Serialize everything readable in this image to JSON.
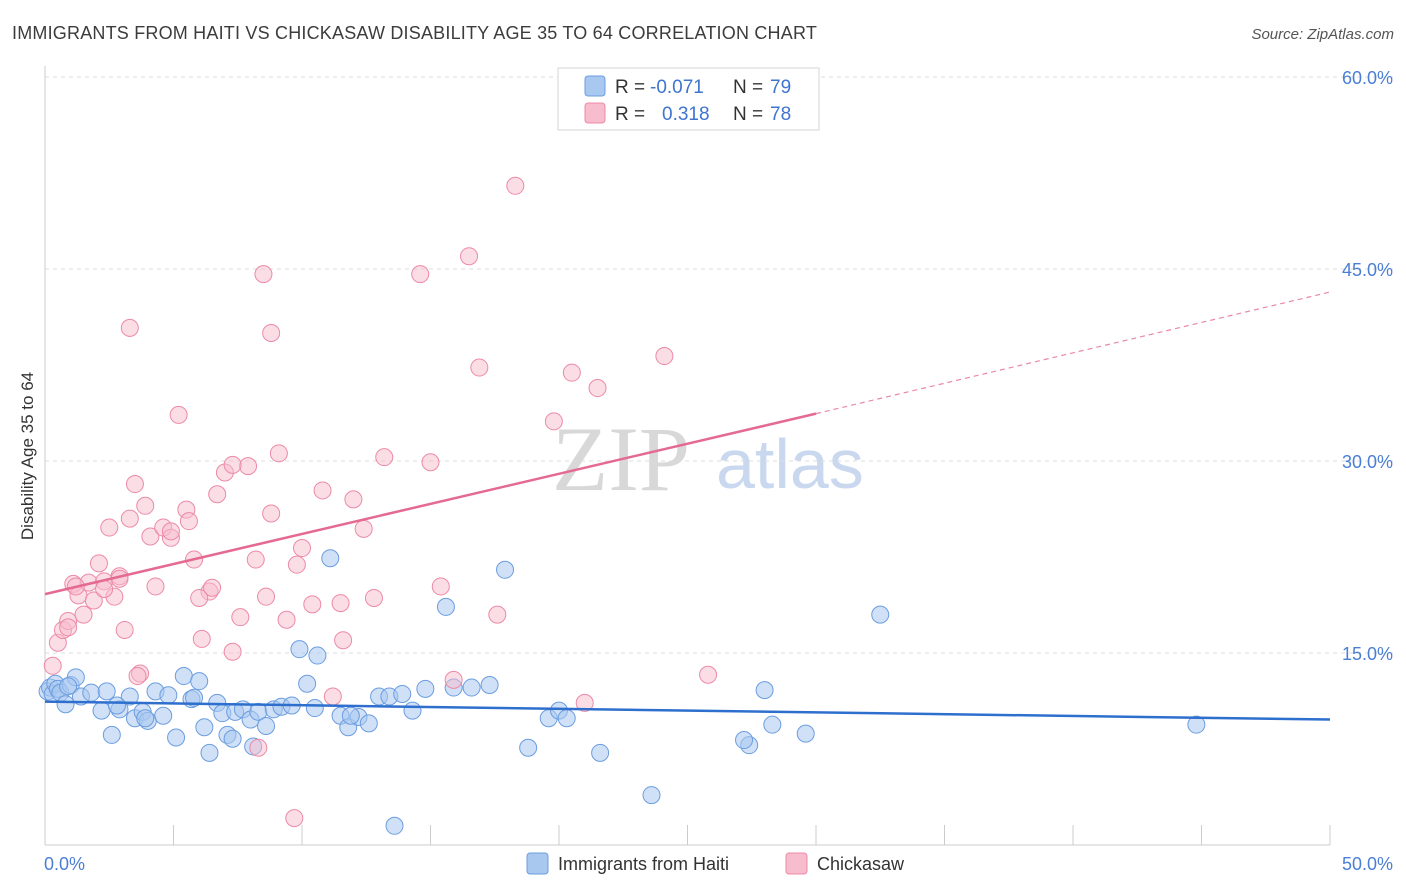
{
  "title": "IMMIGRANTS FROM HAITI VS CHICKASAW DISABILITY AGE 35 TO 64 CORRELATION CHART",
  "source": "Source: ZipAtlas.com",
  "watermark": {
    "zip": "ZIP",
    "atlas": "atlas"
  },
  "colors": {
    "haiti_fill": "#a9c8f0",
    "haiti_stroke": "#6b9de0",
    "haiti_line": "#2e6fce",
    "chickasaw_fill": "#f7bccd",
    "chickasaw_stroke": "#ec8aa7",
    "chickasaw_line": "#e46a92",
    "grid": "#dddddd",
    "tick_text": "#4a7fd4"
  },
  "legend": {
    "rows": [
      {
        "r_label": "R =",
        "r_value": "-0.071",
        "n_label": "N =",
        "n_value": "79"
      },
      {
        "r_label": "R =",
        "r_value": "0.318",
        "n_label": "N =",
        "n_value": "78"
      }
    ]
  },
  "bottom_legend": [
    "Immigrants from Haiti",
    "Chickasaw"
  ],
  "chart_data": {
    "type": "scatter",
    "title": "IMMIGRANTS FROM HAITI VS CHICKASAW DISABILITY AGE 35 TO 64 CORRELATION CHART",
    "xlabel": "",
    "ylabel": "Disability Age 35 to 64",
    "xlim": [
      0,
      50
    ],
    "ylim": [
      0,
      60
    ],
    "x_tick_labels": [
      "0.0%",
      "50.0%"
    ],
    "y_ticks": [
      15,
      30,
      45,
      60
    ],
    "y_tick_labels": [
      "15.0%",
      "30.0%",
      "45.0%",
      "60.0%"
    ],
    "grid": true,
    "legend_position": "top-center",
    "series": [
      {
        "name": "Immigrants from Haiti",
        "r": -0.071,
        "n": 79,
        "trend": {
          "x0": 0,
          "y0": 11.2,
          "x1": 50,
          "y1": 9.8
        },
        "points": [
          [
            0.1,
            12.0
          ],
          [
            0.2,
            12.3
          ],
          [
            0.3,
            11.8
          ],
          [
            0.4,
            12.6
          ],
          [
            0.5,
            12.2
          ],
          [
            0.6,
            11.9
          ],
          [
            0.8,
            11.0
          ],
          [
            1.0,
            12.5
          ],
          [
            1.2,
            13.1
          ],
          [
            1.4,
            11.6
          ],
          [
            1.8,
            11.9
          ],
          [
            2.2,
            10.5
          ],
          [
            2.4,
            12.0
          ],
          [
            2.6,
            8.6
          ],
          [
            2.9,
            10.6
          ],
          [
            3.3,
            11.6
          ],
          [
            3.5,
            9.9
          ],
          [
            3.8,
            10.4
          ],
          [
            4.0,
            9.7
          ],
          [
            4.3,
            12.0
          ],
          [
            4.6,
            10.1
          ],
          [
            4.8,
            11.7
          ],
          [
            5.1,
            8.4
          ],
          [
            5.4,
            13.2
          ],
          [
            5.7,
            11.4
          ],
          [
            6.0,
            12.8
          ],
          [
            6.2,
            9.2
          ],
          [
            6.4,
            7.2
          ],
          [
            6.7,
            11.1
          ],
          [
            6.9,
            10.3
          ],
          [
            7.1,
            8.6
          ],
          [
            7.4,
            10.4
          ],
          [
            7.7,
            10.6
          ],
          [
            8.0,
            9.8
          ],
          [
            8.3,
            10.4
          ],
          [
            8.6,
            9.3
          ],
          [
            8.9,
            10.6
          ],
          [
            9.2,
            10.8
          ],
          [
            9.6,
            10.9
          ],
          [
            9.9,
            15.3
          ],
          [
            10.2,
            12.6
          ],
          [
            10.6,
            14.8
          ],
          [
            11.1,
            22.4
          ],
          [
            11.5,
            10.1
          ],
          [
            11.8,
            9.2
          ],
          [
            12.2,
            10.0
          ],
          [
            12.6,
            9.5
          ],
          [
            13.0,
            11.6
          ],
          [
            13.4,
            11.6
          ],
          [
            13.9,
            11.8
          ],
          [
            14.3,
            10.5
          ],
          [
            14.8,
            12.2
          ],
          [
            15.6,
            18.6
          ],
          [
            15.9,
            12.3
          ],
          [
            16.6,
            12.3
          ],
          [
            17.3,
            12.5
          ],
          [
            17.9,
            21.5
          ],
          [
            18.8,
            7.6
          ],
          [
            19.6,
            9.9
          ],
          [
            20.0,
            10.5
          ],
          [
            20.3,
            9.9
          ],
          [
            21.6,
            7.2
          ],
          [
            23.6,
            3.9
          ],
          [
            27.4,
            7.8
          ],
          [
            27.2,
            8.2
          ],
          [
            28.3,
            9.4
          ],
          [
            28.0,
            12.1
          ],
          [
            29.6,
            8.7
          ],
          [
            32.5,
            18.0
          ],
          [
            44.8,
            9.4
          ],
          [
            13.6,
            1.5
          ],
          [
            11.9,
            10.1
          ],
          [
            5.8,
            11.5
          ],
          [
            3.9,
            9.9
          ],
          [
            0.9,
            12.4
          ],
          [
            2.8,
            10.9
          ],
          [
            10.5,
            10.7
          ],
          [
            8.1,
            7.7
          ],
          [
            7.3,
            8.3
          ]
        ]
      },
      {
        "name": "Chickasaw",
        "r": 0.318,
        "n": 78,
        "trend": {
          "x0": 0,
          "y0": 19.6,
          "x1": 30,
          "y1": 33.7
        },
        "trend_dashed": {
          "x0": 30,
          "y0": 33.7,
          "x1": 50,
          "y1": 43.2
        },
        "points": [
          [
            0.3,
            14.0
          ],
          [
            0.5,
            15.8
          ],
          [
            0.7,
            16.8
          ],
          [
            0.9,
            17.5
          ],
          [
            1.1,
            20.4
          ],
          [
            1.3,
            19.5
          ],
          [
            1.5,
            18.0
          ],
          [
            1.7,
            20.5
          ],
          [
            1.9,
            19.1
          ],
          [
            2.1,
            22.0
          ],
          [
            2.3,
            20.6
          ],
          [
            2.5,
            24.8
          ],
          [
            2.7,
            19.4
          ],
          [
            2.9,
            21.0
          ],
          [
            3.1,
            16.8
          ],
          [
            3.3,
            25.5
          ],
          [
            3.5,
            28.2
          ],
          [
            3.7,
            13.4
          ],
          [
            3.9,
            26.5
          ],
          [
            4.1,
            24.1
          ],
          [
            4.3,
            20.2
          ],
          [
            4.6,
            24.8
          ],
          [
            4.9,
            24.0
          ],
          [
            5.2,
            33.6
          ],
          [
            5.5,
            26.2
          ],
          [
            5.8,
            22.3
          ],
          [
            6.1,
            16.1
          ],
          [
            6.4,
            19.8
          ],
          [
            6.7,
            27.4
          ],
          [
            7.0,
            29.1
          ],
          [
            7.3,
            15.1
          ],
          [
            7.6,
            17.8
          ],
          [
            7.9,
            29.6
          ],
          [
            8.2,
            22.3
          ],
          [
            8.5,
            44.6
          ],
          [
            8.8,
            25.9
          ],
          [
            9.1,
            30.6
          ],
          [
            9.4,
            17.6
          ],
          [
            9.7,
            2.1
          ],
          [
            10.0,
            23.2
          ],
          [
            10.4,
            18.8
          ],
          [
            10.8,
            27.7
          ],
          [
            11.2,
            11.6
          ],
          [
            11.6,
            16.0
          ],
          [
            12.0,
            27.0
          ],
          [
            12.4,
            24.7
          ],
          [
            12.8,
            19.3
          ],
          [
            13.2,
            30.3
          ],
          [
            14.6,
            44.6
          ],
          [
            15.0,
            29.9
          ],
          [
            15.4,
            20.2
          ],
          [
            15.9,
            12.9
          ],
          [
            16.5,
            46.0
          ],
          [
            16.9,
            37.3
          ],
          [
            17.6,
            18.0
          ],
          [
            18.3,
            51.5
          ],
          [
            19.8,
            33.1
          ],
          [
            20.5,
            36.9
          ],
          [
            21.5,
            35.7
          ],
          [
            21.0,
            11.1
          ],
          [
            24.1,
            38.2
          ],
          [
            25.8,
            13.3
          ],
          [
            8.8,
            40.0
          ],
          [
            3.3,
            40.4
          ],
          [
            4.9,
            24.5
          ],
          [
            6.0,
            19.3
          ],
          [
            7.3,
            29.7
          ],
          [
            9.8,
            21.9
          ],
          [
            2.3,
            20.0
          ],
          [
            1.2,
            20.2
          ],
          [
            0.9,
            17.0
          ],
          [
            5.6,
            25.3
          ],
          [
            6.5,
            20.1
          ],
          [
            8.6,
            19.4
          ],
          [
            11.5,
            18.9
          ],
          [
            3.6,
            13.2
          ],
          [
            2.9,
            20.8
          ],
          [
            8.3,
            7.6
          ]
        ]
      }
    ]
  }
}
